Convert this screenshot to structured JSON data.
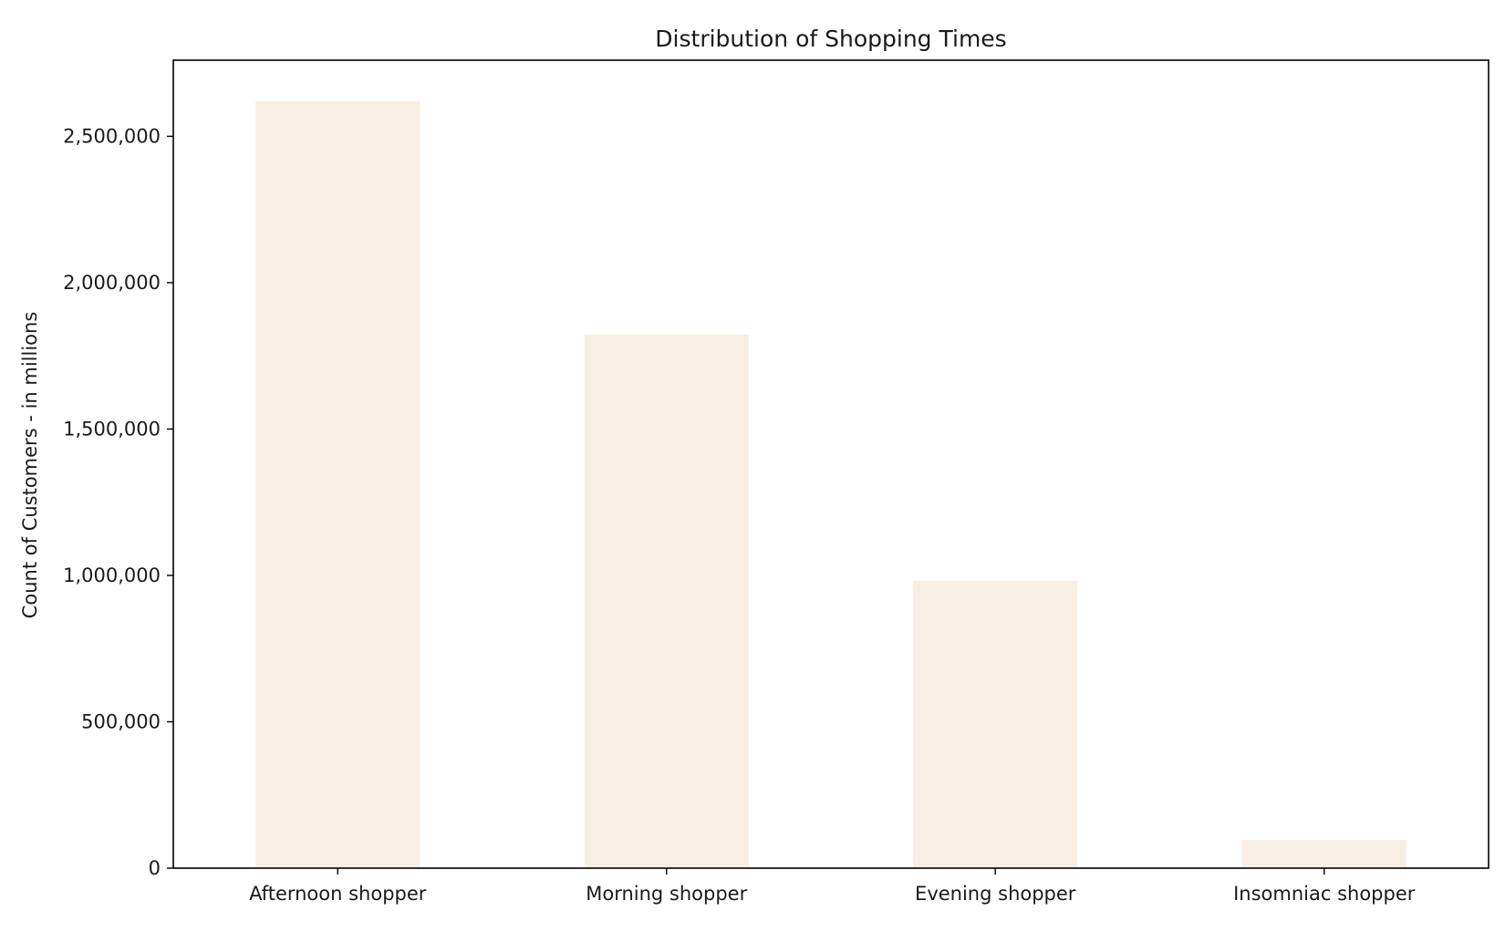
{
  "chart_data": {
    "type": "bar",
    "title": "Distribution of Shopping Times",
    "xlabel": "",
    "ylabel": "Count of Customers - in millions",
    "categories": [
      "Afternoon shopper",
      "Morning shopper",
      "Evening shopper",
      "Insomniac shopper"
    ],
    "values": [
      2620000,
      1823000,
      982000,
      96000
    ],
    "ylim": [
      0,
      2760000
    ],
    "yticks": [
      0,
      500000,
      1000000,
      1500000,
      2000000,
      2500000
    ],
    "ytick_labels": [
      "0",
      "500,000",
      "1,000,000",
      "1,500,000",
      "2,000,000",
      "2,500,000"
    ],
    "bar_color": "#f8efe4",
    "grid": false,
    "legend": "none"
  }
}
